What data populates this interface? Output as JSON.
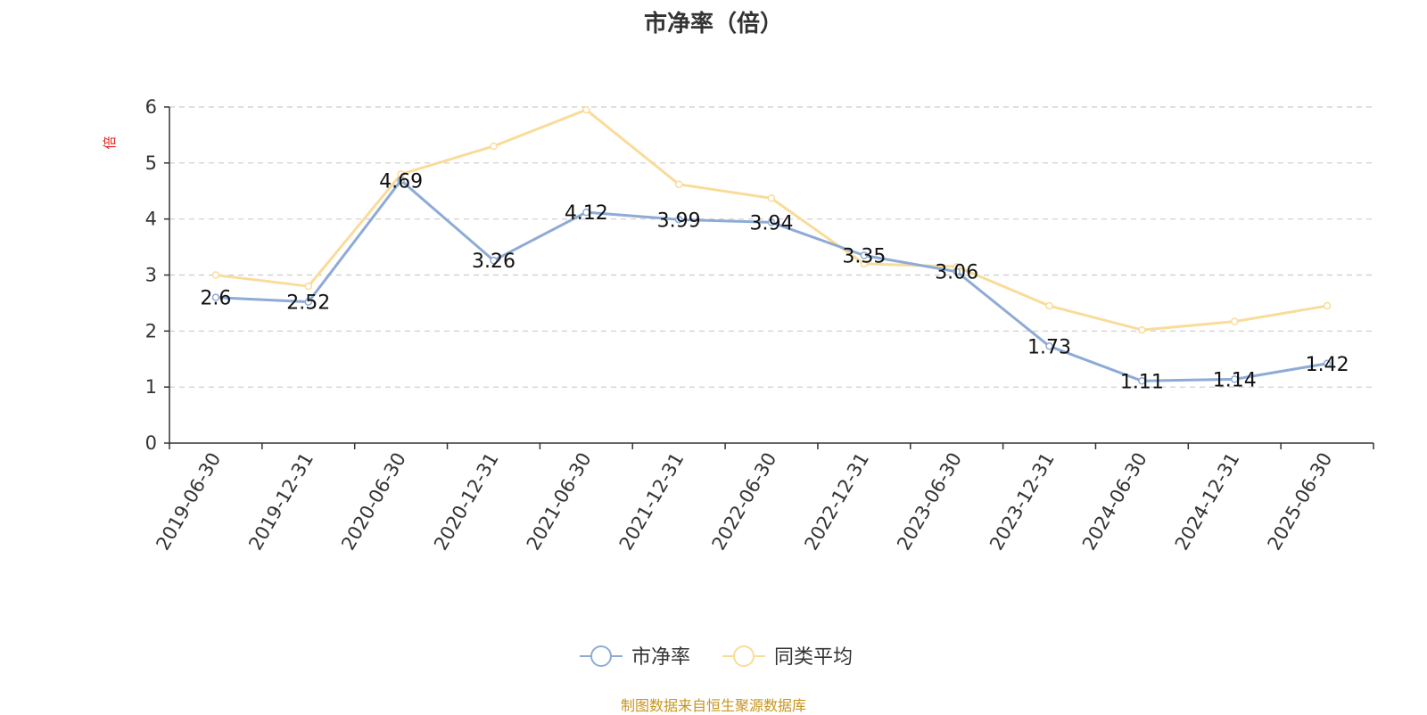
{
  "chart_data": {
    "type": "line",
    "title": "市净率（倍）",
    "ylabel": "倍",
    "ylim": [
      0,
      6
    ],
    "yticks": [
      0,
      1,
      2,
      3,
      4,
      5,
      6
    ],
    "grid": true,
    "legend_position": "bottom-center",
    "categories": [
      "2019-06-30",
      "2019-12-31",
      "2020-06-30",
      "2020-12-31",
      "2021-06-30",
      "2021-12-31",
      "2022-06-30",
      "2022-12-31",
      "2023-06-30",
      "2023-12-31",
      "2024-06-30",
      "2024-12-31",
      "2025-06-30"
    ],
    "series": [
      {
        "name": "市净率",
        "color": "#8eabd6",
        "show_labels": true,
        "values": [
          2.6,
          2.52,
          4.69,
          3.26,
          4.12,
          3.99,
          3.94,
          3.35,
          3.06,
          1.73,
          1.11,
          1.14,
          1.42
        ]
      },
      {
        "name": "同类平均",
        "color": "#f9dc9a",
        "show_labels": false,
        "values": [
          3.0,
          2.8,
          4.8,
          5.3,
          5.95,
          4.62,
          4.37,
          3.2,
          3.15,
          2.45,
          2.02,
          2.17,
          2.45
        ]
      }
    ]
  },
  "colors": {
    "ylabel": "#e02020",
    "source": "#c8941f",
    "axis": "#333333",
    "grid": "#cccccc"
  },
  "source_text": "制图数据来自恒生聚源数据库"
}
